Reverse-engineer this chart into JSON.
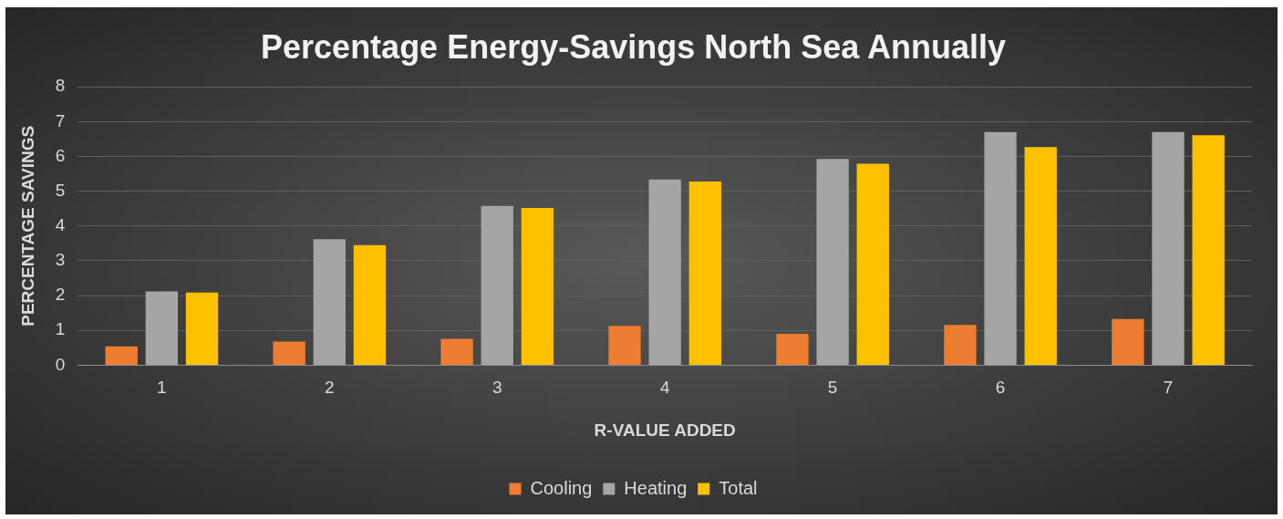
{
  "chart_data": {
    "type": "bar",
    "title": "Percentage Energy-Savings North Sea Annually",
    "xlabel": "R-VALUE ADDED",
    "ylabel": "PERCENTAGE SAVINGS",
    "categories": [
      "1",
      "2",
      "3",
      "4",
      "5",
      "6",
      "7"
    ],
    "series": [
      {
        "name": "Cooling",
        "color": "#ed7d31",
        "values": [
          0.54,
          0.68,
          0.76,
          1.13,
          0.9,
          1.16,
          1.33
        ]
      },
      {
        "name": "Heating",
        "color": "#a5a5a5",
        "values": [
          2.12,
          3.62,
          4.58,
          5.34,
          5.93,
          6.7,
          6.7
        ]
      },
      {
        "name": "Total",
        "color": "#ffc000",
        "values": [
          2.09,
          3.45,
          4.52,
          5.28,
          5.79,
          6.27,
          6.61
        ]
      }
    ],
    "ylim": [
      0,
      8
    ],
    "yticks": [
      0,
      1,
      2,
      3,
      4,
      5,
      6,
      7,
      8
    ],
    "grid": "y",
    "legend": "bottom"
  }
}
